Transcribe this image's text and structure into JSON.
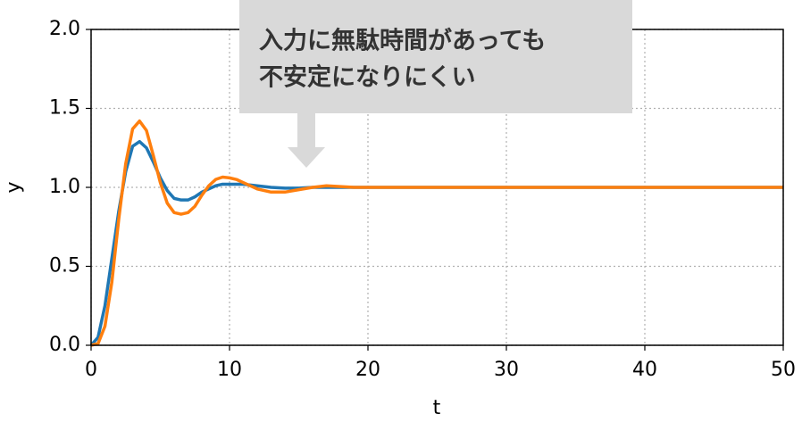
{
  "chart_data": {
    "type": "line",
    "xlabel": "t",
    "ylabel": "y",
    "annotation": [
      "入力に無駄時間があっても",
      "不安定になりにくい"
    ],
    "x": [
      0,
      0.5,
      1,
      1.5,
      2,
      2.5,
      3,
      3.5,
      4,
      4.5,
      5,
      5.5,
      6,
      6.5,
      7,
      7.5,
      8,
      8.5,
      9,
      9.5,
      10,
      10.5,
      11,
      12,
      13,
      14,
      15,
      16,
      17,
      18,
      19,
      20,
      22,
      25,
      30,
      40,
      50
    ],
    "series": [
      {
        "color": "#1f77b4",
        "values": [
          0,
          0.05,
          0.25,
          0.55,
          0.85,
          1.1,
          1.26,
          1.29,
          1.25,
          1.16,
          1.06,
          0.98,
          0.93,
          0.92,
          0.92,
          0.94,
          0.97,
          0.99,
          1.01,
          1.02,
          1.02,
          1.02,
          1.02,
          1.01,
          1.0,
          0.995,
          0.995,
          1.0,
          1.0,
          1.0,
          1.0,
          1.0,
          1.0,
          1.0,
          1.0,
          1.0,
          1.0
        ]
      },
      {
        "color": "#ff7f0e",
        "values": [
          0,
          0.01,
          0.12,
          0.4,
          0.8,
          1.15,
          1.37,
          1.42,
          1.36,
          1.2,
          1.03,
          0.9,
          0.84,
          0.83,
          0.84,
          0.88,
          0.95,
          1.01,
          1.05,
          1.065,
          1.06,
          1.05,
          1.03,
          0.99,
          0.97,
          0.97,
          0.985,
          1.0,
          1.01,
          1.005,
          1.0,
          1.0,
          1.0,
          1.0,
          1.0,
          1.0,
          1.0
        ]
      }
    ],
    "xlim": [
      0,
      50
    ],
    "xticks": [
      0,
      10,
      20,
      30,
      40,
      50
    ],
    "ylim": [
      0,
      2
    ],
    "yticks": [
      {
        "value": 0,
        "label": "0.0"
      },
      {
        "value": 0.5,
        "label": "0.5"
      },
      {
        "value": 1,
        "label": "1.0"
      },
      {
        "value": 1.5,
        "label": "1.5"
      },
      {
        "value": 2,
        "label": "2.0"
      }
    ],
    "grid": true
  }
}
